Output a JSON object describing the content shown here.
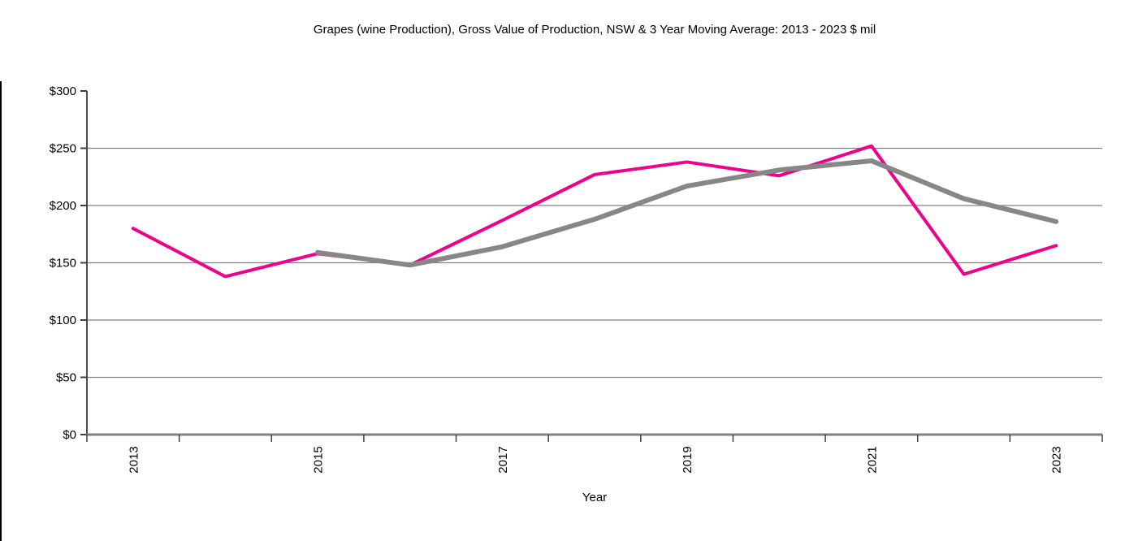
{
  "page": {
    "background_color": "#FFFFFF",
    "left_edge_line_color": "#000000"
  },
  "colors": {
    "series_gvp": "#EC008C",
    "series_moving_average": "#878787",
    "gridline": "#808080",
    "x_axis_line": "#808080",
    "y_axis_line": "#4D4D4D",
    "tick_mark": "#404040",
    "text": "#000000"
  },
  "chart_data": {
    "type": "line",
    "title": "Grapes (wine Production), Gross Value of Production, NSW & 3 Year Moving Average: 2013 - 2023 $ mil",
    "xlabel": "Year",
    "ylabel": "",
    "x": [
      2013,
      2014,
      2015,
      2016,
      2017,
      2018,
      2019,
      2020,
      2021,
      2022,
      2023
    ],
    "x_tick_labels": [
      "2013",
      "2015",
      "2017",
      "2019",
      "2021",
      "2023"
    ],
    "x_label_rotation_deg": -90,
    "series": [
      {
        "name": "NSW Gross Value of Production ($ mil)",
        "color": "#EC008C",
        "stroke_width": 4,
        "values": [
          180,
          138,
          158,
          148,
          187,
          227,
          238,
          226,
          252,
          140,
          165
        ]
      },
      {
        "name": "3 Year Moving Average ($ mil)",
        "color": "#878787",
        "stroke_width": 6,
        "values": [
          null,
          null,
          159,
          148,
          164,
          188,
          217,
          231,
          239,
          206,
          186
        ]
      }
    ],
    "ylim": [
      0,
      300
    ],
    "y_ticks": [
      0,
      50,
      100,
      150,
      200,
      250,
      300
    ],
    "y_tick_labels": [
      "$0",
      "$50",
      "$100",
      "$150",
      "$200",
      "$250",
      "$300"
    ],
    "grid": "horizontal, between min and max only (no line at $300; $0 is the axis line)",
    "legend": "none"
  }
}
